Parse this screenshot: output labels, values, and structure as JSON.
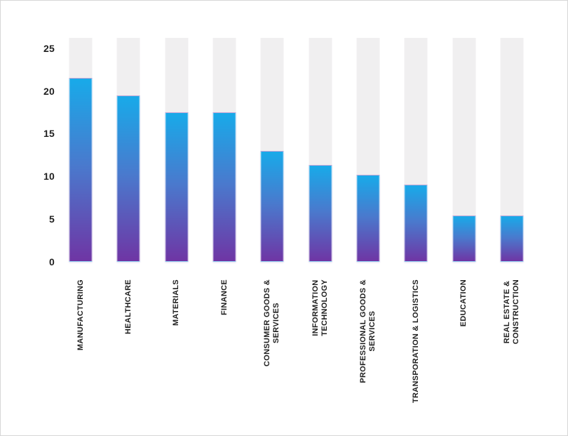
{
  "chart_data": {
    "type": "bar",
    "title": "",
    "xlabel": "",
    "ylabel": "",
    "categories": [
      "MANUFACTURING",
      "HEALTHCARE",
      "MATERIALS",
      "FINANCE",
      "CONSUMER GOODS &\nSERVICES",
      "INFORMATION\nTECHNOLOGY",
      "PROFESSIONAL GOODS &\nSERVICES",
      "TRANSPORATION & LOGISTICS",
      "EDUCATION",
      "REAL ESTATE &\nCONSTRUCTION"
    ],
    "values": [
      21.5,
      19.5,
      17.5,
      17.5,
      13,
      11.3,
      10.2,
      9,
      5.4,
      5.4
    ],
    "y_ticks": [
      0,
      5,
      10,
      15,
      20,
      25
    ],
    "ylim": [
      0,
      26.2
    ],
    "background_track_value": 26.2,
    "grid": "off",
    "legend": "none",
    "colors": {
      "bar_gradient_top": "#18aae9",
      "bar_gradient_mid": "#4a79cd",
      "bar_gradient_bottom": "#6f35a4",
      "track": "#f0eff0",
      "text": "#1f1f1f",
      "frame_border": "#d6d6d6"
    }
  }
}
